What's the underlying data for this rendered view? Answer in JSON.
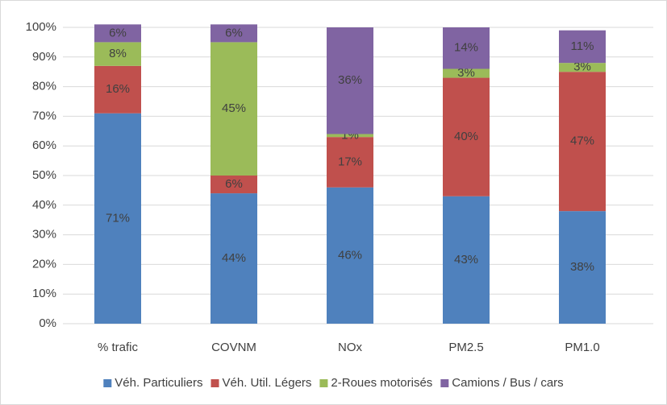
{
  "chart_data": {
    "type": "stacked_bar",
    "categories": [
      "% trafic",
      "COVNM",
      "NOx",
      "PM2.5",
      "PM1.0"
    ],
    "series": [
      {
        "name": "Véh. Particuliers",
        "color": "#4f81bd",
        "values": [
          71,
          44,
          46,
          43,
          38
        ],
        "value_labels": [
          "71%",
          "44%",
          "46%",
          "43%",
          "38%"
        ]
      },
      {
        "name": "Véh. Util. Légers",
        "color": "#c0504d",
        "values": [
          16,
          6,
          17,
          40,
          47
        ],
        "value_labels": [
          "16%",
          "6%",
          "17%",
          "40%",
          "47%"
        ]
      },
      {
        "name": "2-Roues motorisés",
        "color": "#9bbb59",
        "values": [
          8,
          45,
          1,
          3,
          3
        ],
        "value_labels": [
          "8%",
          "45%",
          "1%",
          "3%",
          "3%"
        ]
      },
      {
        "name": "Camions / Bus / cars",
        "color": "#8064a2",
        "values": [
          6,
          6,
          36,
          14,
          11
        ],
        "value_labels": [
          "6%",
          "6%",
          "36%",
          "14%",
          "11%"
        ]
      }
    ],
    "ylim": [
      0,
      100
    ],
    "yticks": [
      {
        "value": 0,
        "label": "0%"
      },
      {
        "value": 10,
        "label": "10%"
      },
      {
        "value": 20,
        "label": "20%"
      },
      {
        "value": 30,
        "label": "30%"
      },
      {
        "value": 40,
        "label": "40%"
      },
      {
        "value": 50,
        "label": "50%"
      },
      {
        "value": 60,
        "label": "60%"
      },
      {
        "value": 70,
        "label": "70%"
      },
      {
        "value": 80,
        "label": "80%"
      },
      {
        "value": 90,
        "label": "90%"
      },
      {
        "value": 100,
        "label": "100%"
      }
    ],
    "grid": true,
    "legend": "bottom"
  }
}
